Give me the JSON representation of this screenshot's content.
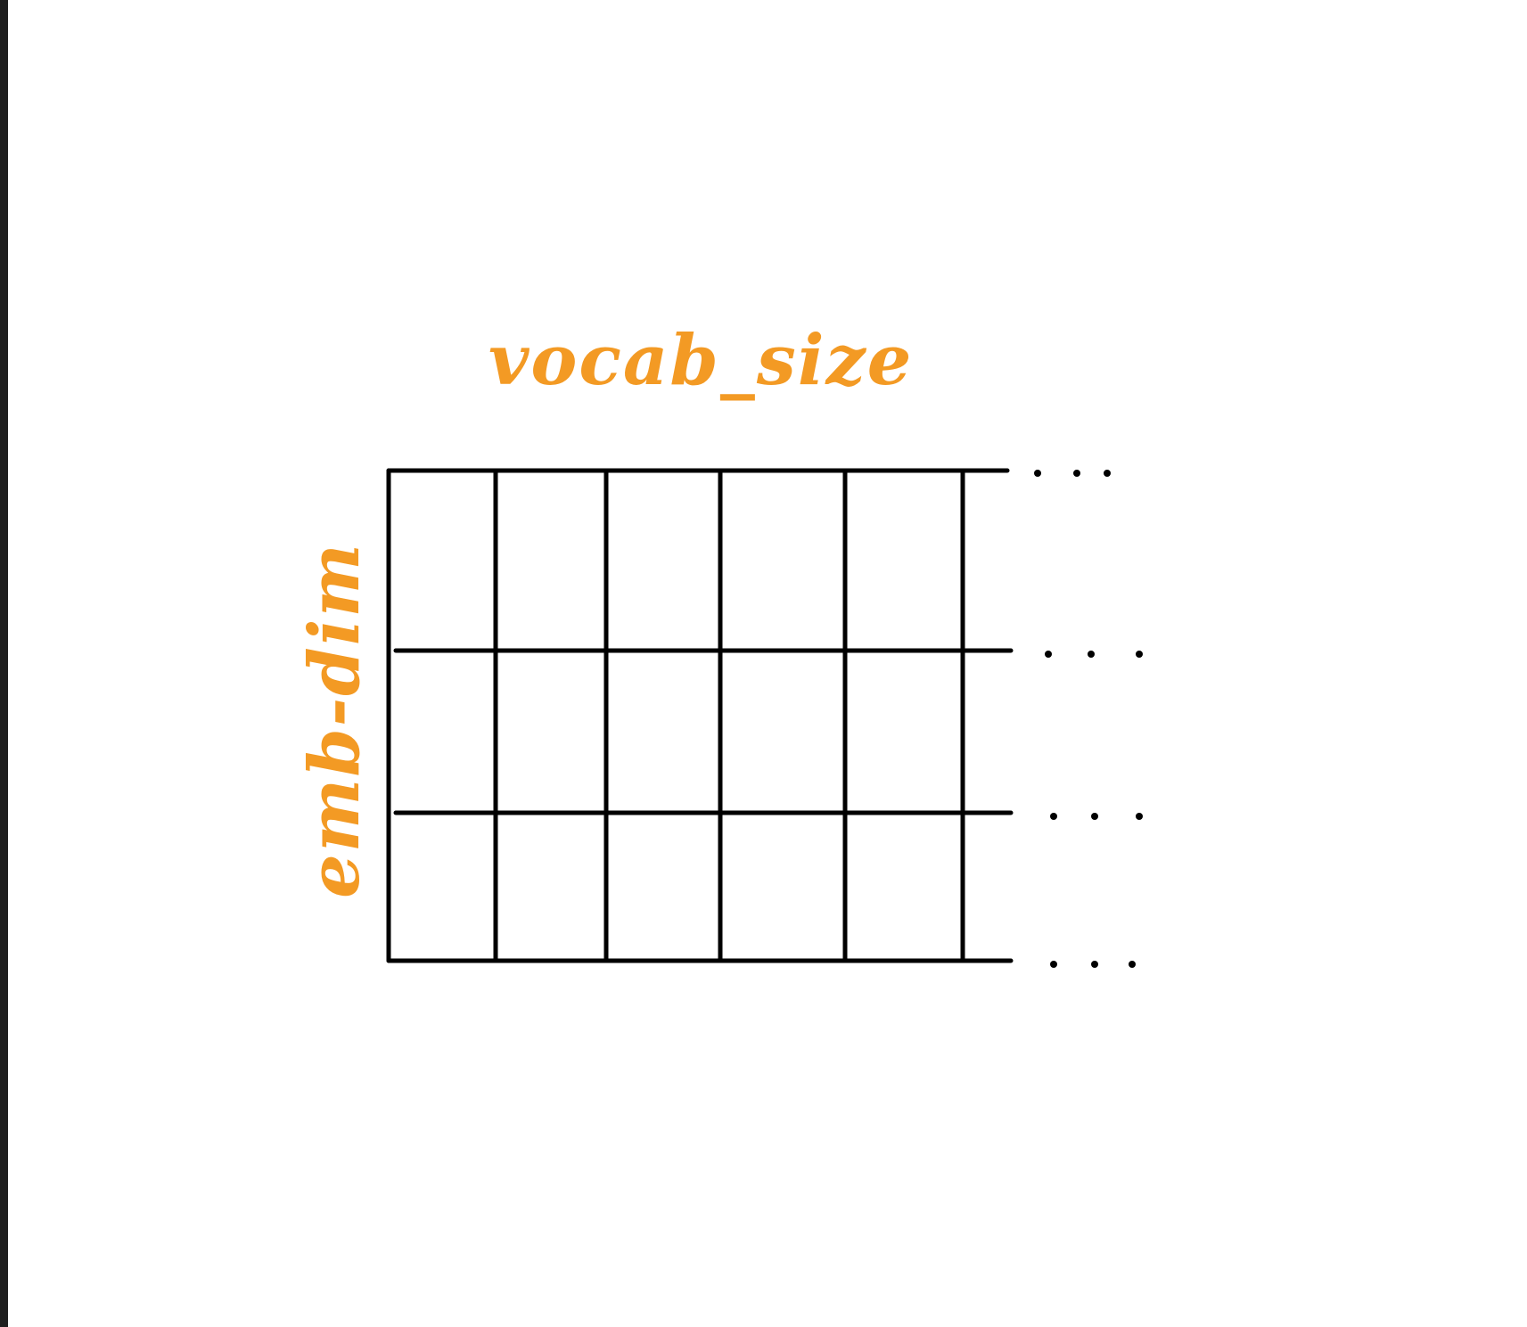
{
  "colors": {
    "label": "#f39a24",
    "grid_line": "#000000",
    "background": "#ffffff"
  },
  "labels": {
    "columns": "vocab_size",
    "rows": "emb-dim"
  },
  "matrix": {
    "visible_columns": 5,
    "visible_rows": 3,
    "continuation": "..."
  }
}
